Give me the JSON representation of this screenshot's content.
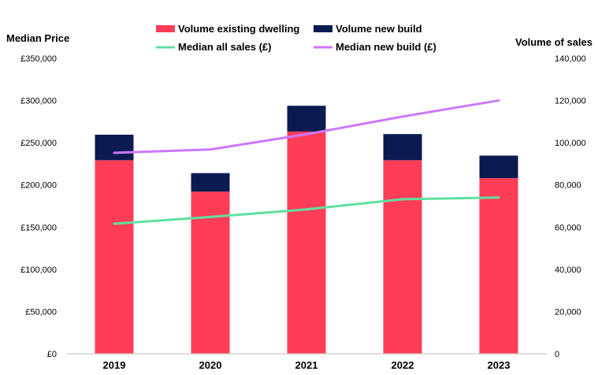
{
  "chart_data": {
    "type": "bar+line",
    "categories": [
      "2019",
      "2020",
      "2021",
      "2022",
      "2023"
    ],
    "left_axis": {
      "title": "Median  Price",
      "range": [
        0,
        350000
      ],
      "ticks": [
        "£0",
        "£50,000",
        "£100,000",
        "£150,000",
        "£200,000",
        "£250,000",
        "£300,000",
        "£350,000"
      ]
    },
    "right_axis": {
      "title": "Volume  of sales",
      "range": [
        0,
        140000
      ],
      "ticks": [
        "0",
        "20,000",
        "40,000",
        "60,000",
        "80,000",
        "100,000",
        "120,000",
        "140,000"
      ]
    },
    "bar_series": [
      {
        "name": "Volume existing dwelling",
        "color": "#ff3d57",
        "axis": "right",
        "values": [
          91700,
          76800,
          105300,
          91700,
          83200
        ]
      },
      {
        "name": "Volume new build",
        "color": "#0b1b52",
        "axis": "right",
        "values": [
          12100,
          8800,
          12200,
          12400,
          10700
        ]
      }
    ],
    "line_series": [
      {
        "name": "Median all sales (£)",
        "color": "#5fe0a0",
        "axis": "left",
        "values": [
          154000,
          162000,
          171000,
          183000,
          185000
        ]
      },
      {
        "name": "Median new build (£)",
        "color": "#cc77ff",
        "axis": "left",
        "values": [
          238000,
          242000,
          260000,
          281000,
          300000
        ]
      }
    ],
    "legend_order": [
      "Volume existing dwelling",
      "Volume new build",
      "Median all sales (£)",
      "Median new build (£)"
    ],
    "legend_position": "top-center"
  }
}
